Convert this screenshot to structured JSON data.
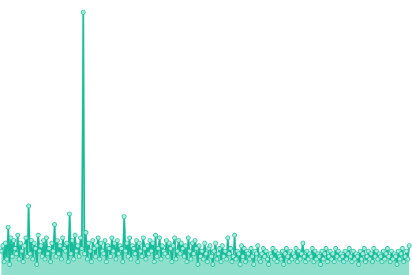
{
  "chart_data": {
    "type": "line",
    "title": "",
    "xlabel": "",
    "ylabel": "",
    "ylim": [
      0,
      100
    ],
    "x_count": 300,
    "grid": false,
    "legend": "none",
    "colors": {
      "area_fill": "#8ee0cc",
      "line": "#19bb9a",
      "marker_fill": "#a8eddc",
      "marker_stroke": "#19bb9a"
    },
    "series": [
      {
        "values": [
          9,
          11,
          5,
          12,
          6,
          18,
          4,
          14,
          7,
          13,
          10,
          8,
          15,
          6,
          12,
          9,
          5,
          11,
          14,
          7,
          26,
          8,
          13,
          6,
          12,
          10,
          4,
          15,
          9,
          11,
          7,
          13,
          6,
          14,
          8,
          10,
          5,
          12,
          9,
          19,
          7,
          13,
          8,
          11,
          6,
          14,
          10,
          9,
          12,
          5,
          23,
          8,
          13,
          6,
          15,
          9,
          11,
          7,
          14,
          10,
          99,
          8,
          16,
          6,
          12,
          9,
          5,
          13,
          10,
          7,
          11,
          14,
          6,
          12,
          9,
          8,
          13,
          5,
          11,
          10,
          7,
          14,
          9,
          12,
          6,
          13,
          8,
          11,
          10,
          5,
          22,
          9,
          12,
          7,
          14,
          6,
          11,
          10,
          8,
          13,
          5,
          12,
          9,
          7,
          14,
          10,
          6,
          11,
          8,
          13,
          9,
          12,
          5,
          15,
          7,
          10,
          14,
          6,
          11,
          9,
          8,
          13,
          7,
          12,
          10,
          5,
          11,
          14,
          6,
          9,
          13,
          8,
          12,
          10,
          7,
          11,
          5,
          14,
          9,
          6,
          12,
          8,
          13,
          10,
          4,
          11,
          7,
          9,
          6,
          12,
          8,
          5,
          10,
          11,
          7,
          4,
          9,
          12,
          6,
          8,
          10,
          5,
          11,
          7,
          9,
          6,
          14,
          8,
          10,
          5,
          7,
          15,
          6,
          9,
          8,
          4,
          11,
          7,
          10,
          5,
          9,
          8,
          6,
          10,
          7,
          4,
          9,
          8,
          11,
          6,
          5,
          8,
          10,
          7,
          9,
          6,
          4,
          8,
          7,
          10,
          6,
          9,
          5,
          8,
          7,
          6,
          9,
          4,
          8,
          10,
          7,
          5,
          9,
          6,
          8,
          7,
          10,
          5,
          9,
          6,
          8,
          12,
          7,
          5,
          9,
          6,
          8,
          7,
          10,
          5,
          9,
          6,
          8,
          7,
          4,
          9,
          6,
          8,
          10,
          5,
          7,
          9,
          6,
          8,
          5,
          10,
          7,
          9,
          6,
          8,
          7,
          5,
          9,
          6,
          8,
          10,
          7,
          5,
          9,
          6,
          8,
          7,
          4,
          9,
          6,
          8,
          10,
          5,
          7,
          9,
          6,
          8,
          5,
          10,
          7,
          9,
          6,
          8,
          7,
          5,
          9,
          6,
          8,
          10,
          7,
          5,
          9,
          6,
          8,
          7,
          4,
          9,
          6,
          8,
          10,
          5,
          7,
          9,
          6,
          11
        ]
      }
    ]
  }
}
